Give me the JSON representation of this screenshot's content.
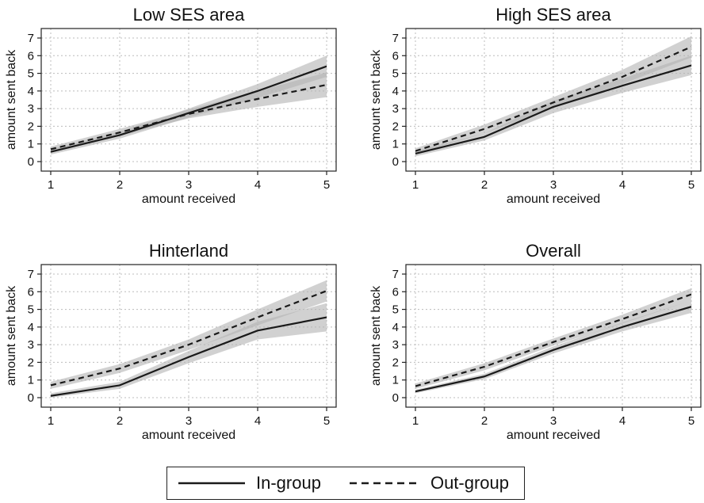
{
  "chart_data": [
    {
      "type": "line",
      "title": "Low SES area",
      "xlabel": "amount received",
      "ylabel": "amount sent back",
      "x": [
        1,
        2,
        3,
        4,
        5
      ],
      "xlim": [
        1,
        5
      ],
      "ylim": [
        0,
        7
      ],
      "xticks": [
        "1",
        "2",
        "3",
        "4",
        "5"
      ],
      "yticks": [
        "0",
        "1",
        "2",
        "3",
        "4",
        "5",
        "6",
        "7"
      ],
      "grid": true,
      "series": [
        {
          "name": "In-group",
          "style": "solid",
          "values": [
            0.55,
            1.5,
            2.75,
            4.0,
            5.4
          ],
          "ci_lower": [
            0.4,
            1.3,
            2.5,
            3.6,
            4.8
          ],
          "ci_upper": [
            0.7,
            1.7,
            3.0,
            4.4,
            6.0
          ]
        },
        {
          "name": "Out-group",
          "style": "dashed",
          "values": [
            0.7,
            1.65,
            2.7,
            3.55,
            4.35
          ],
          "ci_lower": [
            0.55,
            1.45,
            2.45,
            3.1,
            3.65
          ],
          "ci_upper": [
            0.85,
            1.85,
            2.95,
            4.0,
            5.05
          ]
        }
      ]
    },
    {
      "type": "line",
      "title": "High SES area",
      "xlabel": "amount received",
      "ylabel": "amount sent back",
      "x": [
        1,
        2,
        3,
        4,
        5
      ],
      "xlim": [
        1,
        5
      ],
      "ylim": [
        0,
        7
      ],
      "xticks": [
        "1",
        "2",
        "3",
        "4",
        "5"
      ],
      "yticks": [
        "0",
        "1",
        "2",
        "3",
        "4",
        "5",
        "6",
        "7"
      ],
      "grid": true,
      "series": [
        {
          "name": "In-group",
          "style": "solid",
          "values": [
            0.45,
            1.4,
            3.1,
            4.3,
            5.45
          ],
          "ci_lower": [
            0.3,
            1.2,
            2.75,
            3.9,
            4.9
          ],
          "ci_upper": [
            0.6,
            1.6,
            3.45,
            4.7,
            6.0
          ]
        },
        {
          "name": "Out-group",
          "style": "dashed",
          "values": [
            0.6,
            1.85,
            3.35,
            4.8,
            6.5
          ],
          "ci_lower": [
            0.45,
            1.6,
            3.05,
            4.4,
            5.9
          ],
          "ci_upper": [
            0.75,
            2.1,
            3.65,
            5.2,
            7.1
          ]
        }
      ]
    },
    {
      "type": "line",
      "title": "Hinterland",
      "xlabel": "amount received",
      "ylabel": "amount sent back",
      "x": [
        1,
        2,
        3,
        4,
        5
      ],
      "xlim": [
        1,
        5
      ],
      "ylim": [
        0,
        7
      ],
      "xticks": [
        "1",
        "2",
        "3",
        "4",
        "5"
      ],
      "yticks": [
        "0",
        "1",
        "2",
        "3",
        "4",
        "5",
        "6",
        "7"
      ],
      "grid": true,
      "series": [
        {
          "name": "In-group",
          "style": "solid",
          "values": [
            0.1,
            0.7,
            2.3,
            3.8,
            4.55
          ],
          "ci_lower": [
            0.0,
            0.5,
            1.95,
            3.3,
            3.75
          ],
          "ci_upper": [
            0.25,
            0.9,
            2.65,
            4.3,
            5.35
          ]
        },
        {
          "name": "Out-group",
          "style": "dashed",
          "values": [
            0.7,
            1.65,
            3.0,
            4.55,
            6.05
          ],
          "ci_lower": [
            0.5,
            1.4,
            2.7,
            4.1,
            5.45
          ],
          "ci_upper": [
            0.9,
            1.9,
            3.3,
            5.0,
            6.65
          ]
        }
      ]
    },
    {
      "type": "line",
      "title": "Overall",
      "xlabel": "amount received",
      "ylabel": "amount sent back",
      "x": [
        1,
        2,
        3,
        4,
        5
      ],
      "xlim": [
        1,
        5
      ],
      "ylim": [
        0,
        7
      ],
      "xticks": [
        "1",
        "2",
        "3",
        "4",
        "5"
      ],
      "yticks": [
        "0",
        "1",
        "2",
        "3",
        "4",
        "5",
        "6",
        "7"
      ],
      "grid": true,
      "series": [
        {
          "name": "In-group",
          "style": "solid",
          "values": [
            0.35,
            1.2,
            2.7,
            4.0,
            5.15
          ],
          "ci_lower": [
            0.25,
            1.05,
            2.5,
            3.75,
            4.8
          ],
          "ci_upper": [
            0.45,
            1.35,
            2.9,
            4.25,
            5.5
          ]
        },
        {
          "name": "Out-group",
          "style": "dashed",
          "values": [
            0.65,
            1.75,
            3.15,
            4.45,
            5.85
          ],
          "ci_lower": [
            0.5,
            1.55,
            2.95,
            4.2,
            5.5
          ],
          "ci_upper": [
            0.8,
            1.95,
            3.35,
            4.7,
            6.2
          ]
        }
      ]
    }
  ],
  "legend": {
    "items": [
      {
        "label": "In-group",
        "style": "solid"
      },
      {
        "label": "Out-group",
        "style": "dashed"
      }
    ],
    "placement": "bottom-center"
  },
  "colors": {
    "line": "#1a1a1a",
    "ci_band": "#b3b3b3",
    "grid": "#bcbcbc",
    "frame": "#222222"
  }
}
